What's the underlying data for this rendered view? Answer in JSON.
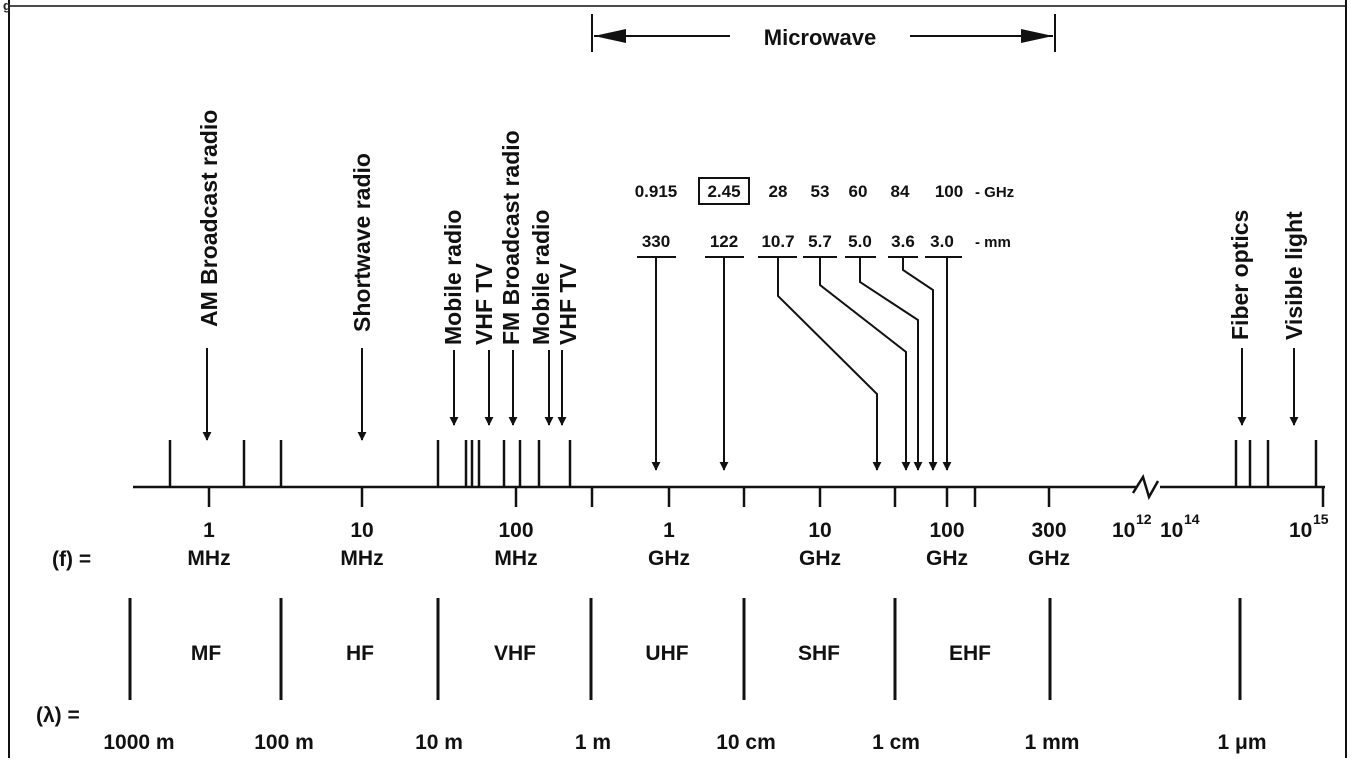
{
  "figure_label": "g",
  "microwave": {
    "label": "Microwave"
  },
  "applications": [
    "AM Broadcast radio",
    "Shortwave radio",
    "Mobile radio",
    "VHF TV",
    "FM Broadcast radio",
    "Mobile radio",
    "VHF TV",
    "Fiber optics",
    "Visible light"
  ],
  "ism_bands": {
    "freq_values": [
      "0.915",
      "2.45",
      "28",
      "53",
      "60",
      "84",
      "100"
    ],
    "freq_unit": "- GHz",
    "highlighted_value": "2.45",
    "wavelength_values": [
      "330",
      "122",
      "10.7",
      "5.7",
      "5.0",
      "3.6",
      "3.0"
    ],
    "wavelength_unit": "- mm"
  },
  "frequency_axis": {
    "label": "(f) =",
    "ticks": [
      {
        "value": "1",
        "unit": "MHz"
      },
      {
        "value": "10",
        "unit": "MHz"
      },
      {
        "value": "100",
        "unit": "MHz"
      },
      {
        "value": "1",
        "unit": "GHz"
      },
      {
        "value": "10",
        "unit": "GHz"
      },
      {
        "value": "100",
        "unit": "GHz"
      },
      {
        "value": "300",
        "unit": "GHz"
      }
    ],
    "powers": [
      {
        "base": "10",
        "exp": "12"
      },
      {
        "base": "10",
        "exp": "14"
      },
      {
        "base": "10",
        "exp": "15"
      }
    ]
  },
  "bands": [
    "MF",
    "HF",
    "VHF",
    "UHF",
    "SHF",
    "EHF"
  ],
  "wavelength_axis": {
    "label": "(λ) =",
    "values": [
      "1000 m",
      "100 m",
      "10 m",
      "1 m",
      "10 cm",
      "1 cm",
      "1 mm",
      "1 μm"
    ]
  }
}
